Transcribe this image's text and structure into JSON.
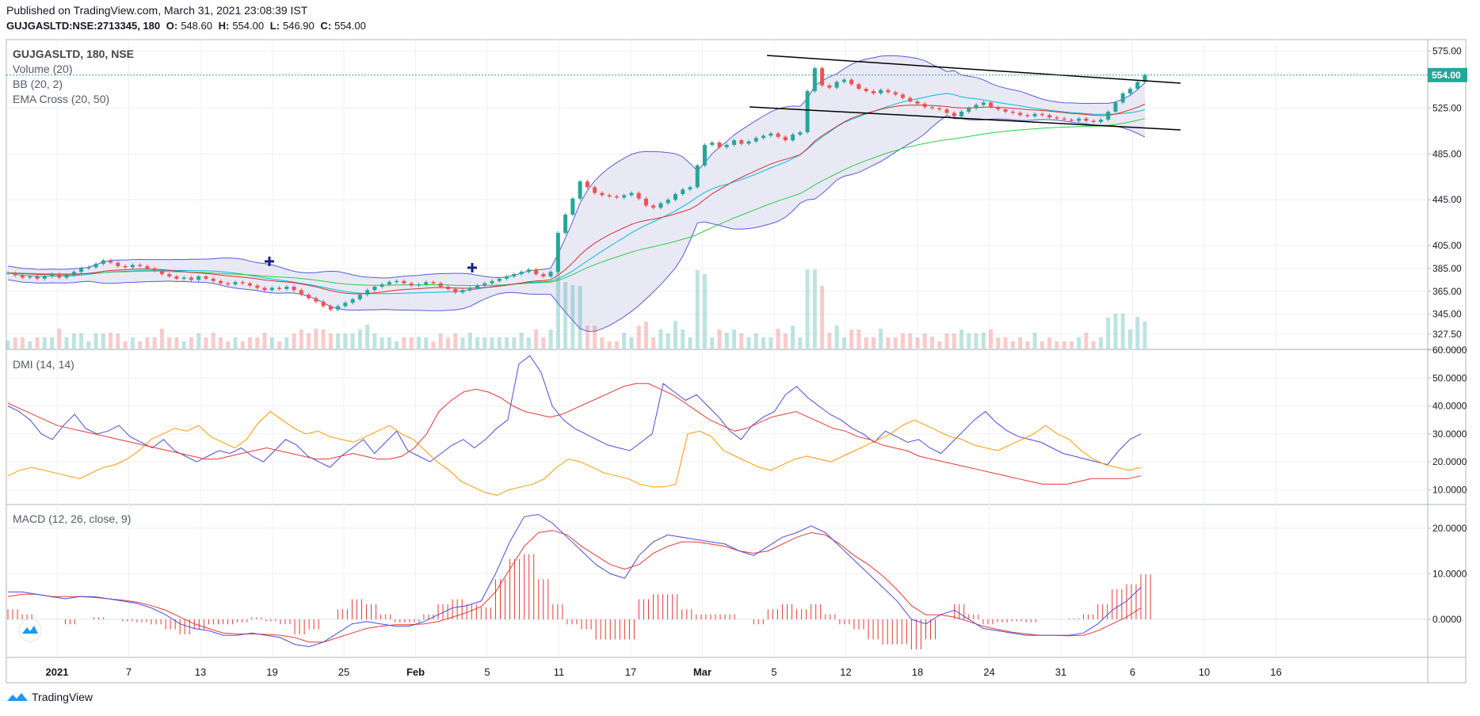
{
  "header": {
    "published": "Published on TradingView.com, March 31, 2021 23:08:39 IST",
    "symbol_line": "GUJGASLTD:NSE:2713345, 180",
    "o_label": "O:",
    "o_value": "548.60",
    "h_label": "H:",
    "h_value": "554.00",
    "l_label": "L:",
    "l_value": "546.90",
    "c_label": "C:",
    "c_value": "554.00"
  },
  "legend": {
    "symbol": "GUJGASLTD, 180, NSE",
    "volume": "Volume (20)",
    "bb": "BB (20, 2)",
    "ema": "EMA Cross (20, 50)",
    "dmi": "DMI (14, 14)",
    "macd": "MACD (12, 26, close, 9)"
  },
  "footer": {
    "brand": "TradingView"
  },
  "colors": {
    "up": "#26a69a",
    "down": "#ef5350",
    "bb_band": "#5b5bd6",
    "bb_fill": "#e3e3f4",
    "ema20": "#d32f2f",
    "ema50": "#2ecc40",
    "bb_basis": "#00bcd4",
    "dmi_plus": "#4b4bd8",
    "dmi_minus": "#ff9800",
    "adx": "#e53935",
    "macd": "#4b4bd8",
    "signal": "#e53935",
    "hist": "#e53935",
    "price_tag": "#26a69a"
  },
  "chart_data": [
    {
      "type": "candlestick",
      "title": "GUJGASLTD, 180, NSE",
      "ylim": [
        315,
        585
      ],
      "yticks": [
        "575.00",
        "525.00",
        "485.00",
        "445.00",
        "405.00",
        "385.00",
        "365.00",
        "345.00",
        "327.50"
      ],
      "last_price": "554.00",
      "xticks": [
        "2021",
        "7",
        "13",
        "19",
        "25",
        "Feb",
        "5",
        "11",
        "17",
        "Mar",
        "5",
        "12",
        "18",
        "24",
        "31",
        "6",
        "10",
        "16"
      ],
      "series": [
        {
          "name": "Price",
          "close": [
            381,
            379,
            377,
            378,
            376,
            378,
            380,
            377,
            379,
            382,
            385,
            386,
            389,
            392,
            390,
            387,
            386,
            388,
            387,
            385,
            383,
            380,
            378,
            376,
            377,
            375,
            378,
            376,
            374,
            372,
            371,
            373,
            372,
            370,
            368,
            366,
            368,
            367,
            369,
            366,
            362,
            359,
            356,
            352,
            349,
            352,
            355,
            358,
            362,
            366,
            369,
            371,
            373,
            374,
            372,
            370,
            371,
            373,
            372,
            369,
            367,
            364,
            366,
            368,
            370,
            372,
            374,
            376,
            378,
            380,
            382,
            384,
            380,
            378,
            382,
            416,
            432,
            446,
            461,
            456,
            451,
            449,
            448,
            447,
            449,
            451,
            446,
            440,
            438,
            442,
            445,
            450,
            454,
            456,
            475,
            493,
            495,
            491,
            493,
            497,
            494,
            496,
            499,
            501,
            503,
            500,
            497,
            502,
            504,
            540,
            560,
            545,
            543,
            548,
            550,
            546,
            542,
            540,
            538,
            541,
            539,
            537,
            534,
            531,
            529,
            526,
            525,
            524,
            521,
            518,
            522,
            525,
            528,
            530,
            526,
            524,
            522,
            521,
            519,
            518,
            520,
            519,
            517,
            516,
            515,
            514,
            516,
            514,
            513,
            515,
            522,
            530,
            538,
            542,
            548,
            554
          ],
          "note": "approximate closes, one per displayed 3h bar"
        }
      ],
      "indicators": [
        "Volume (20)",
        "BB (20, 2)",
        "EMA Cross (20, 50)"
      ]
    },
    {
      "type": "line",
      "title": "DMI (14, 14)",
      "ylim": [
        5,
        60
      ],
      "yticks": [
        "60.0000",
        "50.0000",
        "40.0000",
        "30.0000",
        "20.0000",
        "10.0000"
      ],
      "series": [
        {
          "name": "+DI",
          "key": "plus",
          "values": [
            40,
            38,
            35,
            30,
            28,
            33,
            37,
            32,
            30,
            31,
            33,
            29,
            27,
            25,
            28,
            24,
            22,
            20,
            22,
            24,
            23,
            25,
            22,
            20,
            24,
            28,
            26,
            22,
            20,
            18,
            22,
            25,
            28,
            23,
            27,
            31,
            24,
            22,
            20,
            23,
            26,
            28,
            25,
            28,
            32,
            35,
            55,
            58,
            52,
            40,
            35,
            32,
            30,
            28,
            26,
            25,
            24,
            27,
            30,
            48,
            45,
            42,
            44,
            40,
            36,
            31,
            28,
            33,
            36,
            38,
            44,
            47,
            43,
            40,
            37,
            35,
            32,
            30,
            27,
            31,
            29,
            27,
            28,
            25,
            23,
            27,
            31,
            35,
            38,
            34,
            31,
            29,
            28,
            27,
            25,
            23,
            22,
            21,
            20,
            19,
            24,
            28,
            30
          ]
        },
        {
          "name": "-DI",
          "key": "minus",
          "values": [
            15,
            17,
            18,
            17,
            16,
            15,
            14,
            16,
            18,
            19,
            21,
            24,
            28,
            30,
            32,
            31,
            33,
            29,
            27,
            25,
            28,
            34,
            38,
            35,
            32,
            30,
            31,
            29,
            28,
            27,
            29,
            31,
            33,
            30,
            28,
            24,
            20,
            17,
            13,
            11,
            9,
            8,
            10,
            11,
            12,
            14,
            18,
            21,
            20,
            18,
            16,
            15,
            14,
            12,
            11,
            11,
            12,
            30,
            31,
            29,
            24,
            22,
            20,
            18,
            17,
            19,
            21,
            22,
            21,
            20,
            22,
            24,
            26,
            28,
            30,
            33,
            35,
            33,
            31,
            29,
            28,
            26,
            25,
            24,
            26,
            28,
            30,
            33,
            30,
            28,
            24,
            21,
            19,
            18,
            17,
            18
          ]
        },
        {
          "name": "ADX",
          "key": "adx",
          "values": [
            41,
            39,
            37,
            35,
            33,
            32,
            31,
            30,
            29,
            28,
            27,
            26,
            25,
            24,
            23,
            22,
            21,
            21,
            22,
            23,
            24,
            25,
            24,
            23,
            22,
            21,
            21,
            22,
            23,
            22,
            21,
            21,
            22,
            25,
            30,
            38,
            42,
            45,
            46,
            45,
            43,
            40,
            38,
            37,
            36,
            37,
            39,
            41,
            43,
            45,
            47,
            48,
            48,
            46,
            44,
            41,
            38,
            35,
            33,
            31,
            32,
            34,
            36,
            37,
            38,
            36,
            34,
            32,
            31,
            29,
            28,
            26,
            25,
            24,
            22,
            21,
            20,
            19,
            18,
            17,
            16,
            15,
            14,
            13,
            12,
            12,
            12,
            13,
            14,
            14,
            14,
            14,
            15
          ]
        }
      ]
    },
    {
      "type": "line",
      "title": "MACD (12, 26, close, 9)",
      "ylim": [
        -8,
        25
      ],
      "yticks": [
        "20.0000",
        "10.0000",
        "0.0000"
      ],
      "series": [
        {
          "name": "MACD",
          "key": "macd",
          "values": [
            6,
            6,
            5.5,
            5,
            4.5,
            5,
            5,
            4.5,
            4,
            3.5,
            2.5,
            1,
            -1,
            -2,
            -2.5,
            -3.5,
            -3.5,
            -3,
            -3.5,
            -4,
            -5.5,
            -6,
            -5,
            -3,
            -1,
            -0.5,
            -1,
            -1.5,
            -1.5,
            -0.5,
            1,
            2.5,
            3,
            4,
            10,
            17,
            22.5,
            23,
            21,
            18,
            15,
            12,
            10,
            9,
            14,
            17,
            18.5,
            18,
            17.5,
            17,
            16.5,
            15,
            14,
            16,
            18,
            19,
            20.5,
            19,
            16,
            13,
            10,
            7,
            4,
            0,
            -1,
            1,
            2,
            0,
            -2,
            -2.5,
            -3,
            -3.5,
            -3.5,
            -3.5,
            -3.5,
            -3,
            -1,
            2,
            4,
            7
          ]
        },
        {
          "name": "Signal",
          "key": "signal",
          "values": [
            5,
            5.5,
            5.5,
            5,
            5,
            5,
            4.8,
            4.5,
            4.2,
            3.8,
            3,
            2,
            0.5,
            -1,
            -2,
            -3,
            -3.2,
            -3.2,
            -3.3,
            -3.5,
            -4,
            -5,
            -5,
            -4,
            -3,
            -2,
            -1.5,
            -1.2,
            -1.2,
            -1,
            -0.5,
            0.5,
            1.5,
            2.8,
            6,
            11,
            16,
            19,
            19.5,
            18.5,
            16,
            14,
            12,
            11,
            12,
            14.5,
            16,
            17,
            17,
            16.5,
            16,
            15,
            14.5,
            15,
            16.5,
            18,
            19,
            18.5,
            16.5,
            14,
            12,
            9.5,
            6.5,
            3,
            1,
            1,
            0.5,
            -0.5,
            -1.5,
            -2.2,
            -2.8,
            -3.2,
            -3.5,
            -3.5,
            -3.6,
            -3.5,
            -2.5,
            -1,
            0.5,
            2.5
          ]
        }
      ]
    }
  ]
}
